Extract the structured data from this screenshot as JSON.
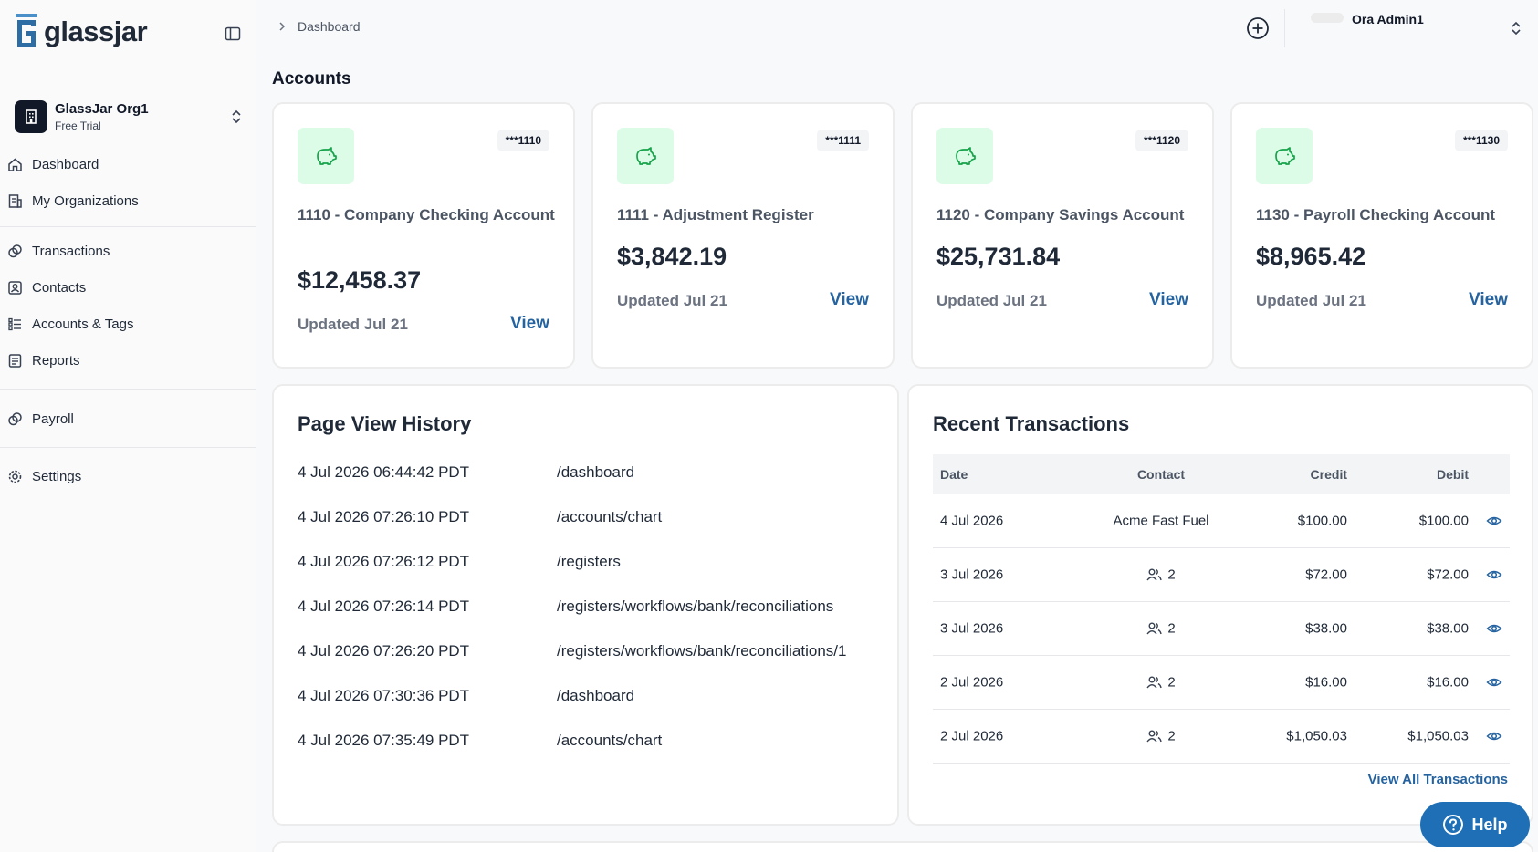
{
  "brand": {
    "name": "glassjar"
  },
  "org": {
    "name": "GlassJar Org1",
    "plan": "Free Trial"
  },
  "nav": {
    "dashboard": "Dashboard",
    "my_orgs": "My Organizations",
    "transactions": "Transactions",
    "contacts": "Contacts",
    "accounts_tags": "Accounts & Tags",
    "reports": "Reports",
    "payroll": "Payroll",
    "settings": "Settings"
  },
  "header": {
    "breadcrumb": "Dashboard",
    "user_name": "Ora Admin1"
  },
  "main": {
    "accounts_title": "Accounts"
  },
  "accounts": [
    {
      "mask": "***1110",
      "name": "1110 - Company Checking Account",
      "balance": "$12,458.37",
      "updated": "Updated Jul 21",
      "view": "View"
    },
    {
      "mask": "***1111",
      "name": "1111 - Adjustment Register",
      "balance": "$3,842.19",
      "updated": "Updated Jul 21",
      "view": "View"
    },
    {
      "mask": "***1120",
      "name": "1120 - Company Savings Account",
      "balance": "$25,731.84",
      "updated": "Updated Jul 21",
      "view": "View"
    },
    {
      "mask": "***1130",
      "name": "1130 - Payroll Checking Account",
      "balance": "$8,965.42",
      "updated": "Updated Jul 21",
      "view": "View"
    }
  ],
  "page_view_history": {
    "title": "Page View History",
    "rows": [
      {
        "time": "4 Jul 2026 06:44:42 PDT",
        "path": "/dashboard"
      },
      {
        "time": "4 Jul 2026 07:26:10 PDT",
        "path": "/accounts/chart"
      },
      {
        "time": "4 Jul 2026 07:26:12 PDT",
        "path": "/registers"
      },
      {
        "time": "4 Jul 2026 07:26:14 PDT",
        "path": "/registers/workflows/bank/reconciliations"
      },
      {
        "time": "4 Jul 2026 07:26:20 PDT",
        "path": "/registers/workflows/bank/reconciliations/1"
      },
      {
        "time": "4 Jul 2026 07:30:36 PDT",
        "path": "/dashboard"
      },
      {
        "time": "4 Jul 2026 07:35:49 PDT",
        "path": "/accounts/chart"
      }
    ]
  },
  "recent_transactions": {
    "title": "Recent Transactions",
    "columns": {
      "date": "Date",
      "contact": "Contact",
      "credit": "Credit",
      "debit": "Debit"
    },
    "rows": [
      {
        "date": "4 Jul 2026",
        "contact": "Acme Fast Fuel",
        "contact_count": "",
        "credit": "$100.00",
        "debit": "$100.00"
      },
      {
        "date": "3 Jul 2026",
        "contact": "",
        "contact_count": "2",
        "credit": "$72.00",
        "debit": "$72.00"
      },
      {
        "date": "3 Jul 2026",
        "contact": "",
        "contact_count": "2",
        "credit": "$38.00",
        "debit": "$38.00"
      },
      {
        "date": "2 Jul 2026",
        "contact": "",
        "contact_count": "2",
        "credit": "$16.00",
        "debit": "$16.00"
      },
      {
        "date": "2 Jul 2026",
        "contact": "",
        "contact_count": "2",
        "credit": "$1,050.03",
        "debit": "$1,050.03"
      }
    ],
    "view_all": "View All Transactions"
  },
  "help": {
    "label": "Help"
  },
  "colors": {
    "accent": "#2563a0",
    "help_bg": "#1e6fb5",
    "icon_bg": "#dcfce7",
    "icon_fg": "#16a34a"
  }
}
